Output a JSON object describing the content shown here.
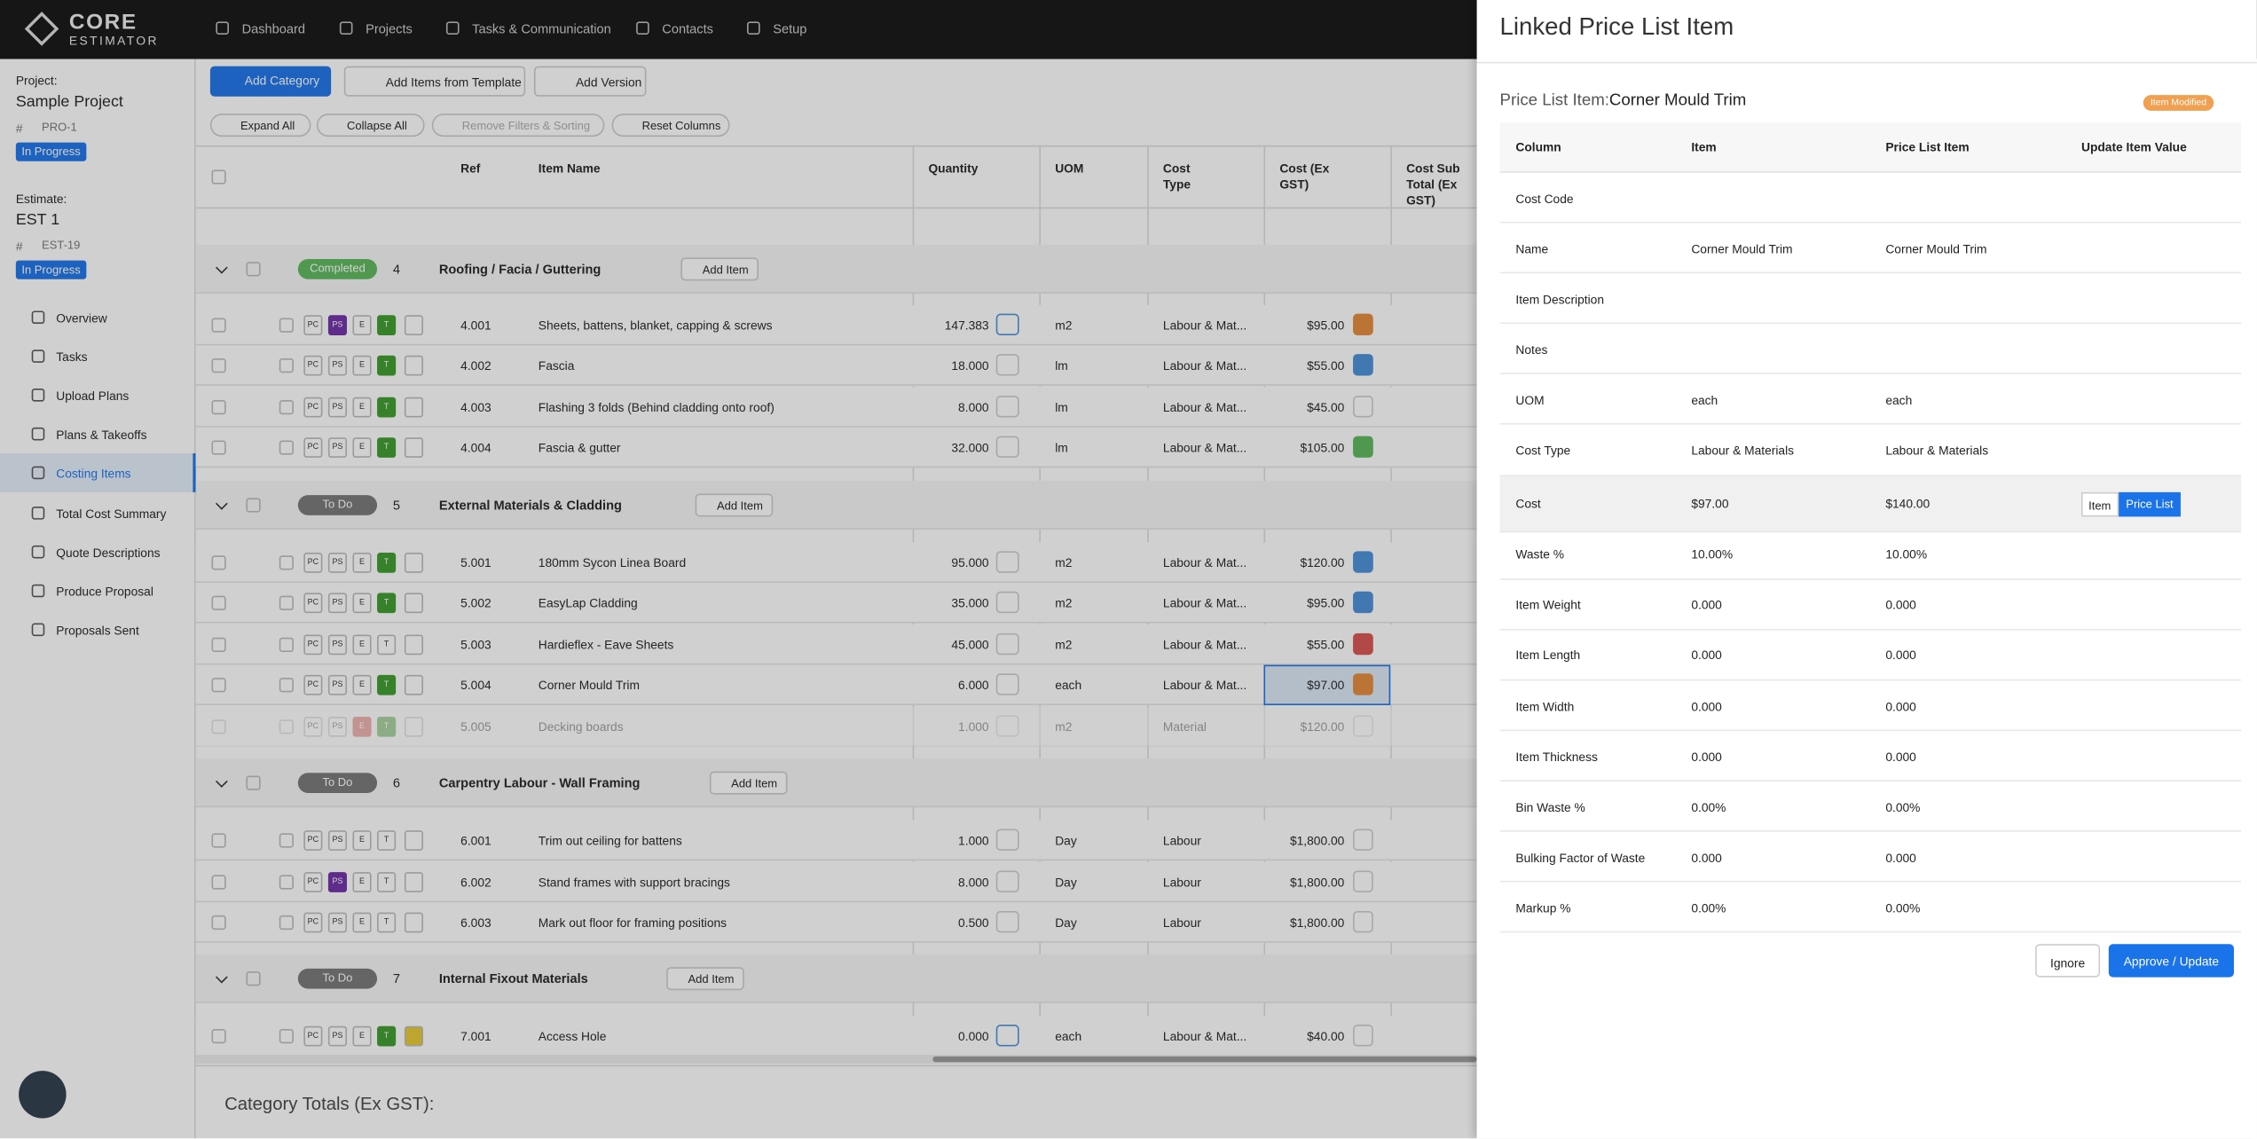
{
  "header": {
    "logo": [
      "CORE",
      "ESTIMATOR"
    ],
    "nav": [
      "Dashboard",
      "Projects",
      "Tasks & Communication",
      "Contacts",
      "Setup"
    ]
  },
  "sidebar": {
    "project_label": "Project:",
    "project_name": "Sample Project",
    "hash": "#",
    "project_code": "PRO-1",
    "project_status": "In Progress",
    "estimate_label": "Estimate:",
    "estimate_name": "EST 1",
    "estimate_code": "EST-19",
    "estimate_status": "In Progress",
    "menu": [
      "Overview",
      "Tasks",
      "Upload Plans",
      "Plans & Takeoffs",
      "Costing Items",
      "Total Cost Summary",
      "Quote Descriptions",
      "Produce Proposal",
      "Proposals Sent"
    ]
  },
  "toolbar": {
    "buttons": [
      "Add Category",
      "Add Items from Template",
      "Add Version"
    ],
    "filters": [
      "Expand All",
      "Collapse All",
      "Remove Filters & Sorting",
      "Reset Columns"
    ]
  },
  "table": {
    "columns": [
      "Ref",
      "Item Name",
      "Quantity",
      "UOM",
      "Cost Type",
      "Cost (Ex GST)",
      "Cost Sub Total (Ex GST)"
    ],
    "row_tags": [
      "PC",
      "PS",
      "E",
      "T"
    ],
    "add_item": "Add Item",
    "groups": [
      {
        "status": "Completed",
        "status_color": "#5cb85c",
        "number": "4",
        "name": "Roofing / Facia / Guttering",
        "rows": [
          {
            "ref": "4.001",
            "name": "Sheets, battens, blanket, capping & screws",
            "qty": "147.383",
            "uom": "m2",
            "type": "Labour & Mat...",
            "cost": "$95.00",
            "ps_color": "#6f2da8",
            "t_color": "#3a9a2a",
            "tag_color": "#e58a3a"
          },
          {
            "ref": "4.002",
            "name": "Fascia",
            "qty": "18.000",
            "uom": "lm",
            "type": "Labour & Mat...",
            "cost": "$55.00",
            "t_color": "#3a9a2a",
            "tag_color": "#4a8fd8"
          },
          {
            "ref": "4.003",
            "name": "Flashing 3 folds (Behind cladding onto roof)",
            "qty": "8.000",
            "uom": "lm",
            "type": "Labour & Mat...",
            "cost": "$45.00",
            "t_color": "#3a9a2a"
          },
          {
            "ref": "4.004",
            "name": "Fascia & gutter",
            "qty": "32.000",
            "uom": "lm",
            "type": "Labour & Mat...",
            "cost": "$105.00",
            "t_color": "#3a9a2a",
            "tag_color": "#5cb85c"
          }
        ]
      },
      {
        "status": "To Do",
        "status_color": "#777",
        "number": "5",
        "name": "External Materials & Cladding",
        "rows": [
          {
            "ref": "5.001",
            "name": "180mm Sycon Linea Board",
            "qty": "95.000",
            "uom": "m2",
            "type": "Labour & Mat...",
            "cost": "$120.00",
            "t_color": "#3a9a2a",
            "tag_color": "#4a8fd8"
          },
          {
            "ref": "5.002",
            "name": "EasyLap Cladding",
            "qty": "35.000",
            "uom": "m2",
            "type": "Labour & Mat...",
            "cost": "$95.00",
            "t_color": "#3a9a2a",
            "tag_color": "#4a8fd8"
          },
          {
            "ref": "5.003",
            "name": "Hardieflex - Eave Sheets",
            "qty": "45.000",
            "uom": "m2",
            "type": "Labour & Mat...",
            "cost": "$55.00",
            "tag_color": "#d9534f"
          },
          {
            "ref": "5.004",
            "name": "Corner Mould Trim",
            "qty": "6.000",
            "uom": "each",
            "type": "Labour & Mat...",
            "cost": "$97.00",
            "t_color": "#3a9a2a",
            "tag_color": "#e58a3a"
          },
          {
            "ref": "5.005",
            "name": "Decking boards",
            "qty": "1.000",
            "uom": "m2",
            "type": "Material",
            "cost": "$120.00",
            "e_color": "#d9534f",
            "t_color": "#3a9a2a"
          }
        ]
      },
      {
        "status": "To Do",
        "status_color": "#777",
        "number": "6",
        "name": "Carpentry Labour - Wall Framing",
        "rows": [
          {
            "ref": "6.001",
            "name": "Trim out ceiling for battens",
            "qty": "1.000",
            "uom": "Day",
            "type": "Labour",
            "cost": "$1,800.00"
          },
          {
            "ref": "6.002",
            "name": "Stand frames with support bracings",
            "qty": "8.000",
            "uom": "Day",
            "type": "Labour",
            "cost": "$1,800.00",
            "ps_color": "#6f2da8"
          },
          {
            "ref": "6.003",
            "name": "Mark out floor for framing positions",
            "qty": "0.500",
            "uom": "Day",
            "type": "Labour",
            "cost": "$1,800.00"
          }
        ]
      },
      {
        "status": "To Do",
        "status_color": "#777",
        "number": "7",
        "name": "Internal Fixout Materials",
        "rows": [
          {
            "ref": "7.001",
            "name": "Access Hole",
            "qty": "0.000",
            "uom": "each",
            "type": "Labour & Mat...",
            "cost": "$40.00",
            "t_color": "#3a9a2a"
          }
        ]
      }
    ]
  },
  "footer": "Category Totals (Ex GST):",
  "panel": {
    "title": "Linked Price List Item",
    "item_label": "Price List Item:",
    "item_name": "Corner Mould Trim",
    "badge": "Item Modified",
    "columns": [
      "Column",
      "Item",
      "Price List Item",
      "Update Item Value"
    ],
    "rows": [
      [
        "Cost Code",
        "",
        ""
      ],
      [
        "Name",
        "Corner Mould Trim",
        "Corner Mould Trim"
      ],
      [
        "Item Description",
        "",
        ""
      ],
      [
        "Notes",
        "",
        ""
      ],
      [
        "UOM",
        "each",
        "each"
      ],
      [
        "Cost Type",
        "Labour & Materials",
        "Labour & Materials"
      ],
      [
        "Cost",
        "$97.00",
        "$140.00"
      ],
      [
        "Waste %",
        "10.00%",
        "10.00%"
      ],
      [
        "Item Weight",
        "0.000",
        "0.000"
      ],
      [
        "Item Length",
        "0.000",
        "0.000"
      ],
      [
        "Item Width",
        "0.000",
        "0.000"
      ],
      [
        "Item Thickness",
        "0.000",
        "0.000"
      ],
      [
        "Bin Waste %",
        "0.00%",
        "0.00%"
      ],
      [
        "Bulking Factor of Waste",
        "0.000",
        "0.000"
      ],
      [
        "Markup %",
        "0.00%",
        "0.00%"
      ]
    ],
    "toggle": [
      "Item",
      "Price List"
    ],
    "buttons": [
      "Ignore",
      "Approve / Update"
    ]
  }
}
